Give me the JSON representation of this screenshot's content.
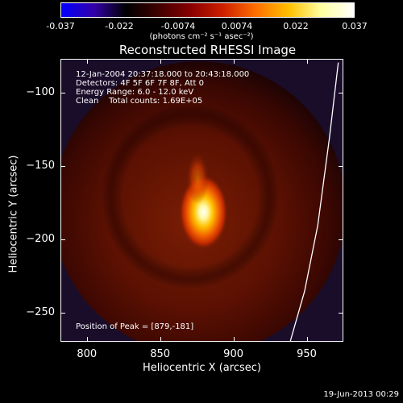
{
  "colorbar": {
    "ticks": [
      "-0.037",
      "-0.022",
      "-0.0074",
      "0.0074",
      "0.022",
      "0.037"
    ],
    "unit": "(photons cm⁻² s⁻¹ asec⁻²)",
    "colormap": [
      "#0000ff",
      "#3300aa",
      "#000000",
      "#400000",
      "#8a0000",
      "#d02000",
      "#ff7000",
      "#ffc000",
      "#ffffa0",
      "#ffffff"
    ]
  },
  "chart_data": {
    "type": "heatmap",
    "title": "Reconstructed RHESSI Image",
    "xlabel": "Heliocentric X (arcsec)",
    "ylabel": "Heliocentric Y (arcsec)",
    "xlim": [
      782,
      975
    ],
    "ylim": [
      -270,
      -77
    ],
    "xticks": [
      800,
      850,
      900,
      950
    ],
    "yticks": [
      -100,
      -150,
      -200,
      -250
    ],
    "info_lines": [
      "12-Jan-2004 20:37:18.000 to 20:43:18.000",
      "Detectors: 4F 5F 6F 7F 8F, Att 0",
      "Energy Range: 6.0 - 12.0 keV",
      "Clean    Total counts: 1.69E+05"
    ],
    "peak_label": "Position of Peak = [879,-181]",
    "peak": {
      "x": 879,
      "y": -181
    },
    "sources": [
      {
        "x": 879,
        "y": -181,
        "level": 1.0
      },
      {
        "x": 875,
        "y": -158,
        "level": 0.55
      }
    ],
    "limb_curve": [
      [
        971,
        -79
      ],
      [
        965,
        -130
      ],
      [
        957,
        -190
      ],
      [
        948,
        -235
      ],
      [
        938,
        -270
      ]
    ]
  },
  "footer": {
    "date": "19-Jun-2013 00:29"
  }
}
